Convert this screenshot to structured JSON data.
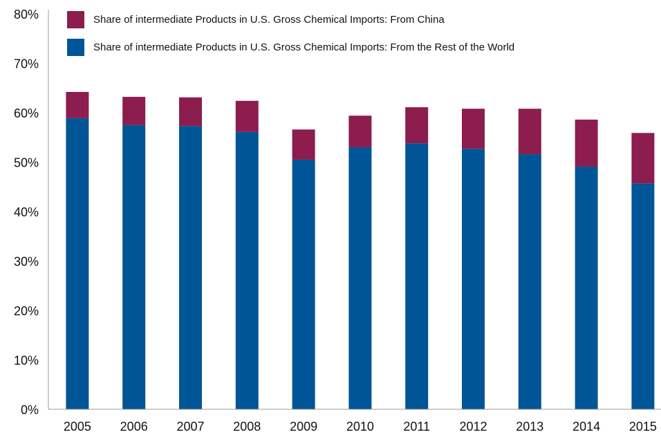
{
  "chart_data": {
    "type": "stacked_bar",
    "categories": [
      "2005",
      "2006",
      "2007",
      "2008",
      "2009",
      "2010",
      "2011",
      "2012",
      "2013",
      "2014",
      "2015"
    ],
    "series": [
      {
        "name": "Share of intermediate Products in U.S. Gross Chemical Imports: From China",
        "color": "#8c1d4e",
        "values": [
          5.3,
          5.7,
          5.8,
          6.3,
          6.1,
          6.4,
          7.3,
          8.1,
          9.2,
          9.5,
          10.2
        ]
      },
      {
        "name": "Share of intermediate Products in U.S. Gross Chemical Imports: From the Rest of the World",
        "color": "#005596",
        "values": [
          58.9,
          57.5,
          57.3,
          56.1,
          50.5,
          53.0,
          53.8,
          52.7,
          51.6,
          49.1,
          45.7
        ]
      }
    ],
    "ylim": [
      0,
      80
    ],
    "yticks": [
      {
        "value": 0,
        "label": "0%"
      },
      {
        "value": 10,
        "label": "10%"
      },
      {
        "value": 20,
        "label": "20%"
      },
      {
        "value": 30,
        "label": "30%"
      },
      {
        "value": 40,
        "label": "40%"
      },
      {
        "value": 50,
        "label": "50%"
      },
      {
        "value": 60,
        "label": "60%"
      },
      {
        "value": 70,
        "label": "70%"
      },
      {
        "value": 80,
        "label": "80%"
      }
    ],
    "grid": false,
    "legend": "top-left"
  }
}
